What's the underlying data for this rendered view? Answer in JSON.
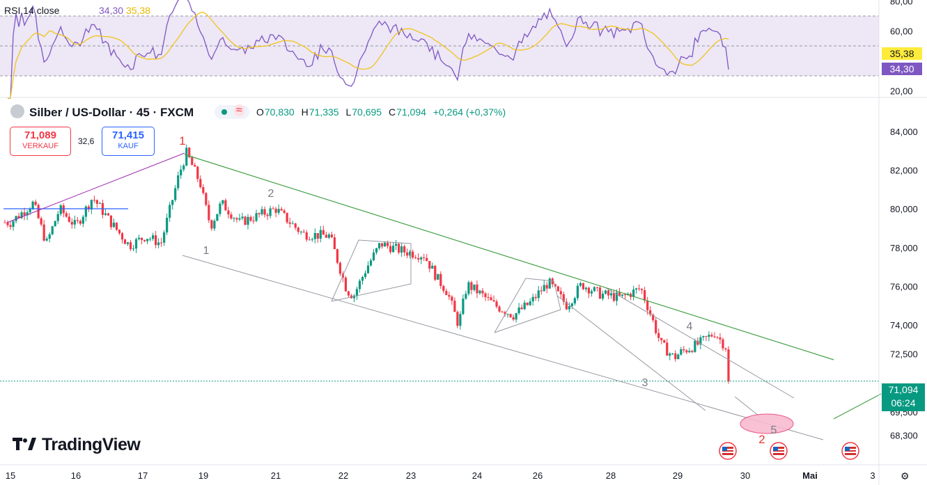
{
  "rsi_panel": {
    "title": "RSI 14 close",
    "rsi_value": "34,30",
    "ma_value": "35,38",
    "axis_ticks": [
      "80,00",
      "60,00",
      "20,00"
    ],
    "last_rsi_tag": "34,30",
    "last_ma_tag": "35,38"
  },
  "header": {
    "symbol": "Silber / US-Dollar · 45 · FXCM",
    "open_label": "O",
    "open": "70,830",
    "high_label": "H",
    "high": "71,335",
    "low_label": "L",
    "low": "70,695",
    "close_label": "C",
    "close": "71,094",
    "change": "+0,264 (+0,37%)"
  },
  "trade": {
    "sell_price": "71,089",
    "sell_label": "VERKAUF",
    "spread": "32,6",
    "buy_price": "71,415",
    "buy_label": "KAUF"
  },
  "current_price": {
    "value": "71,094",
    "countdown": "06:24"
  },
  "logo": {
    "text": "TradingView"
  },
  "colors": {
    "up": "#089981",
    "down": "#f23645",
    "rsi": "#7e57c2",
    "rsi_ma": "#ffeb3b",
    "rsi_band": "#ede7f6",
    "trendline": "#43a047",
    "wave_line": "#9c27b0",
    "blue_line": "#2962ff",
    "channel": "#9598a1",
    "target": "#f8bbd0"
  },
  "chart_data": {
    "type": "candlestick",
    "y_axis": {
      "ylim": [
        67.8,
        85.2
      ],
      "ticks": [
        84.0,
        82.0,
        80.0,
        78.0,
        76.0,
        74.0,
        72.5,
        69.5,
        68.3
      ],
      "tick_labels": [
        "84,000",
        "82,000",
        "80,000",
        "78,000",
        "76,000",
        "74,000",
        "72,500",
        "69,500",
        "68,300"
      ]
    },
    "x_axis": {
      "labels": [
        "15",
        "16",
        "17",
        "19",
        "21",
        "22",
        "23",
        "24",
        "26",
        "28",
        "29",
        "30",
        "Mai",
        "3"
      ]
    },
    "price_path": [
      [
        0,
        79.3
      ],
      [
        0.35,
        80.3
      ],
      [
        0.55,
        78.2
      ],
      [
        0.75,
        80.0
      ],
      [
        1,
        79.1
      ],
      [
        1.25,
        80.6
      ],
      [
        1.5,
        79.4
      ],
      [
        1.8,
        78.1
      ],
      [
        2.05,
        78.6
      ],
      [
        2.3,
        78.2
      ],
      [
        2.6,
        81.8
      ],
      [
        2.72,
        82.9
      ],
      [
        2.95,
        81.3
      ],
      [
        3.1,
        79.1
      ],
      [
        3.25,
        80.3
      ],
      [
        3.5,
        79.3
      ],
      [
        4,
        80.0
      ],
      [
        4.15,
        79.5
      ],
      [
        4.4,
        78.7
      ],
      [
        4.8,
        78.6
      ],
      [
        5.05,
        75.8
      ],
      [
        5.15,
        75.5
      ],
      [
        5.35,
        77.0
      ],
      [
        5.55,
        78.2
      ],
      [
        5.9,
        77.8
      ],
      [
        6.2,
        77.6
      ],
      [
        6.4,
        76.4
      ],
      [
        6.55,
        75.7
      ],
      [
        6.72,
        74.0
      ],
      [
        6.85,
        76.1
      ],
      [
        7.1,
        75.5
      ],
      [
        7.3,
        75.0
      ],
      [
        7.6,
        74.5
      ],
      [
        7.9,
        75.2
      ],
      [
        8.15,
        76.2
      ],
      [
        8.4,
        75.0
      ],
      [
        8.6,
        76.1
      ],
      [
        8.85,
        75.6
      ],
      [
        9.15,
        75.4
      ],
      [
        9.45,
        75.9
      ],
      [
        9.6,
        74.5
      ],
      [
        9.75,
        73.0
      ],
      [
        9.95,
        72.3
      ],
      [
        10.05,
        72.6
      ],
      [
        10.3,
        73.0
      ],
      [
        10.55,
        73.6
      ],
      [
        10.75,
        72.7
      ],
      [
        10.9,
        72.4
      ],
      [
        11.15,
        71.3
      ],
      [
        11.35,
        70.9
      ]
    ],
    "last_close": 71.094,
    "annotations": [
      {
        "text": "1",
        "kind": "wave-major"
      },
      {
        "text": "2",
        "kind": "wave-major"
      },
      {
        "text": "1",
        "kind": "wave-minor"
      },
      {
        "text": "2",
        "kind": "wave-minor"
      },
      {
        "text": "3",
        "kind": "wave-minor"
      },
      {
        "text": "4",
        "kind": "wave-minor"
      },
      {
        "text": "5",
        "kind": "wave-minor"
      }
    ],
    "rsi": {
      "ylim": [
        10,
        85
      ],
      "band": [
        30,
        70
      ],
      "levels": [
        30,
        50,
        70
      ],
      "last_rsi": 34.3,
      "last_ma": 35.38
    }
  }
}
